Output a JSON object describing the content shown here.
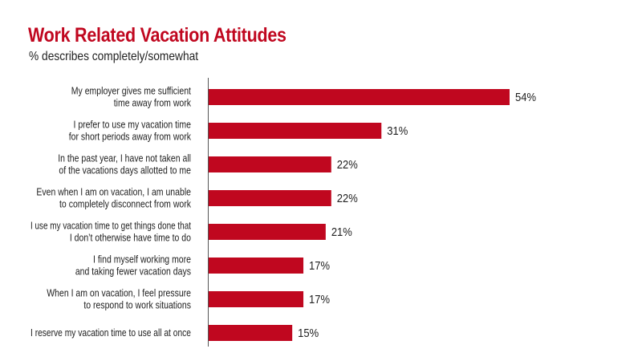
{
  "colors": {
    "bar": "#c0071f",
    "title": "#c0071f",
    "text": "#222222",
    "axis": "#555555"
  },
  "chart_data": {
    "type": "bar",
    "orientation": "horizontal",
    "title": "Work Related Vacation Attitudes",
    "subtitle": "% describes completely/somewhat",
    "categories": [
      [
        "My employer gives me sufficient",
        "time away from work"
      ],
      [
        "I prefer to use my vacation time",
        "for short periods away from work"
      ],
      [
        "In the past year, I have not taken all",
        "of the vacations days allotted to me"
      ],
      [
        "Even when I am on vacation, I am unable",
        "to completely disconnect from work"
      ],
      [
        "I use my vacation time to get things done that",
        "I don’t otherwise have time to do"
      ],
      [
        "I find myself working more",
        "and taking fewer vacation days"
      ],
      [
        "When I am on vacation, I feel pressure",
        "to respond to work situations"
      ],
      [
        "I reserve my vacation time to use all at once"
      ]
    ],
    "values": [
      54,
      31,
      22,
      22,
      21,
      17,
      17,
      15
    ],
    "value_labels": [
      "54%",
      "31%",
      "22%",
      "22%",
      "21%",
      "17%",
      "17%",
      "15%"
    ],
    "unit": "%",
    "xlim": [
      0,
      60
    ],
    "grid": false,
    "legend": "none"
  }
}
